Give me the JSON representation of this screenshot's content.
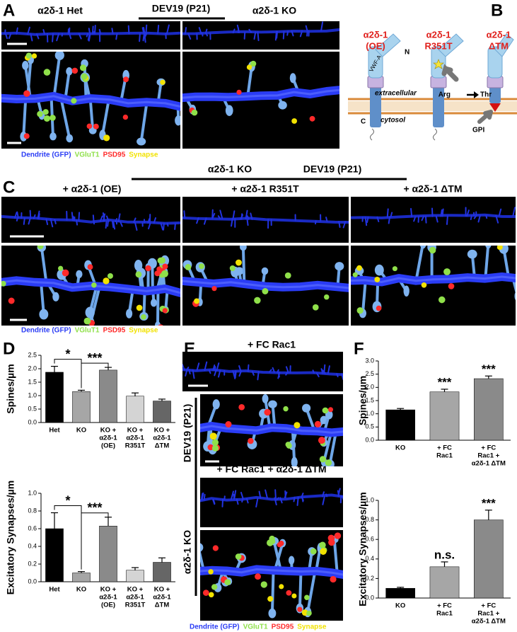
{
  "panel_labels": [
    "A",
    "B",
    "C",
    "D",
    "E",
    "F"
  ],
  "legend": [
    {
      "name": "Dendrite (GFP)",
      "color": "#2a3cf5"
    },
    {
      "name": "VGluT1",
      "color": "#8fe04a"
    },
    {
      "name": "PSD95",
      "color": "#ff2a2a"
    },
    {
      "name": "Synapse",
      "color": "#f2e200"
    }
  ],
  "panel_a": {
    "left_title": "α2δ-1 Het",
    "center_title": "DEV19 (P21)",
    "right_title": "α2δ-1 KO"
  },
  "panel_b": {
    "variants": [
      [
        "α2δ-1",
        "(OE)"
      ],
      [
        "α2δ-1",
        "R351T"
      ],
      [
        "α2δ-1",
        "ΔTM"
      ]
    ],
    "n_terminus": "N",
    "domain": "VWF-A",
    "extracellular": "extracellular",
    "mutation_from": "Arg",
    "mutation_to": "Thr",
    "c_terminus": "C",
    "cytosol": "cytosol",
    "anchor": "GPI"
  },
  "panel_c": {
    "header_left": "α2δ-1 KO",
    "header_right": "DEV19 (P21)",
    "columns": [
      "+ α2δ-1 (OE)",
      "+ α2δ-1 R351T",
      "+ α2δ-1 ΔTM"
    ]
  },
  "panel_e": {
    "top_title": "+ FC Rac1",
    "bottom_title": "+ FC Rac1 + α2δ-1 ΔTM",
    "side_labels": [
      "DEV19 (P21)",
      "α2δ-1 KO"
    ]
  },
  "chart_data": [
    {
      "type": "bar",
      "ylabel": "Spines/µm",
      "categories": [
        [
          "Het"
        ],
        [
          "KO"
        ],
        [
          "KO +",
          "α2δ-1",
          "(OE)"
        ],
        [
          "KO +",
          "α2δ-1",
          "R351T"
        ],
        [
          "KO +",
          "α2δ-1",
          "ΔTM"
        ]
      ],
      "values": [
        1.87,
        1.15,
        1.95,
        0.98,
        0.8
      ],
      "errors": [
        0.22,
        0.05,
        0.1,
        0.12,
        0.07
      ],
      "colors": [
        "#000000",
        "#a6a6a6",
        "#8a8a8a",
        "#d4d4d4",
        "#666666"
      ],
      "ylim": [
        0,
        2.5
      ],
      "yticks": [
        {
          "value": 0,
          "label": "0.0"
        },
        0.5,
        {
          "value": 1,
          "label": "1.0"
        },
        1.5,
        {
          "value": 2,
          "label": "2.0"
        },
        2.5
      ],
      "annotations": [
        "*",
        "***"
      ]
    },
    {
      "type": "bar",
      "ylabel": "Excitatory Synapses/µm",
      "categories": [
        [
          "Het"
        ],
        [
          "KO"
        ],
        [
          "KO +",
          "α2δ-1",
          "(OE)"
        ],
        [
          "KO +",
          "α2δ-1",
          "R351T"
        ],
        [
          "KO +",
          "α2δ-1",
          "ΔTM"
        ]
      ],
      "values": [
        0.6,
        0.1,
        0.63,
        0.13,
        0.22
      ],
      "errors": [
        0.18,
        0.015,
        0.1,
        0.03,
        0.05
      ],
      "colors": [
        "#000000",
        "#a6a6a6",
        "#8a8a8a",
        "#d4d4d4",
        "#666666"
      ],
      "ylim": [
        0,
        1
      ],
      "yticks": [
        {
          "value": 0,
          "label": "0.0"
        },
        0.2,
        0.4,
        0.6,
        0.8,
        {
          "value": 1,
          "label": "1.0"
        }
      ],
      "annotations": [
        "*",
        "***"
      ]
    },
    {
      "type": "bar",
      "ylabel": "Spines/µm",
      "categories": [
        [
          "KO"
        ],
        [
          "+ FC",
          "Rac1"
        ],
        [
          "+ FC",
          "Rac1 +",
          "α2δ-1 ΔTM"
        ]
      ],
      "values": [
        1.15,
        1.83,
        2.33
      ],
      "errors": [
        0.05,
        0.1,
        0.1
      ],
      "colors": [
        "#000000",
        "#a6a6a6",
        "#8a8a8a"
      ],
      "ylim": [
        0,
        3
      ],
      "yticks": [
        {
          "value": 0,
          "label": "0.0"
        },
        0.5,
        {
          "value": 1,
          "label": "1.0"
        },
        1.5,
        {
          "value": 2,
          "label": "2.0"
        },
        2.5,
        {
          "value": 3,
          "label": "3.0"
        }
      ],
      "annotations": [
        "***",
        "***"
      ]
    },
    {
      "type": "bar",
      "ylabel": "Excitatory Synapses/µm",
      "categories": [
        [
          "KO"
        ],
        [
          "+ FC",
          "Rac1"
        ],
        [
          "+ FC",
          "Rac1 +",
          "α2δ-1 ΔTM"
        ]
      ],
      "values": [
        0.1,
        0.32,
        0.8
      ],
      "errors": [
        0.01,
        0.05,
        0.1
      ],
      "colors": [
        "#000000",
        "#a6a6a6",
        "#8a8a8a"
      ],
      "ylim": [
        0,
        1
      ],
      "yticks": [
        {
          "value": 0,
          "label": "0.0"
        },
        0.2,
        0.4,
        0.6,
        0.8,
        {
          "value": 1,
          "label": "1.0"
        }
      ],
      "annotations": [
        "n.s.",
        "***"
      ]
    }
  ]
}
